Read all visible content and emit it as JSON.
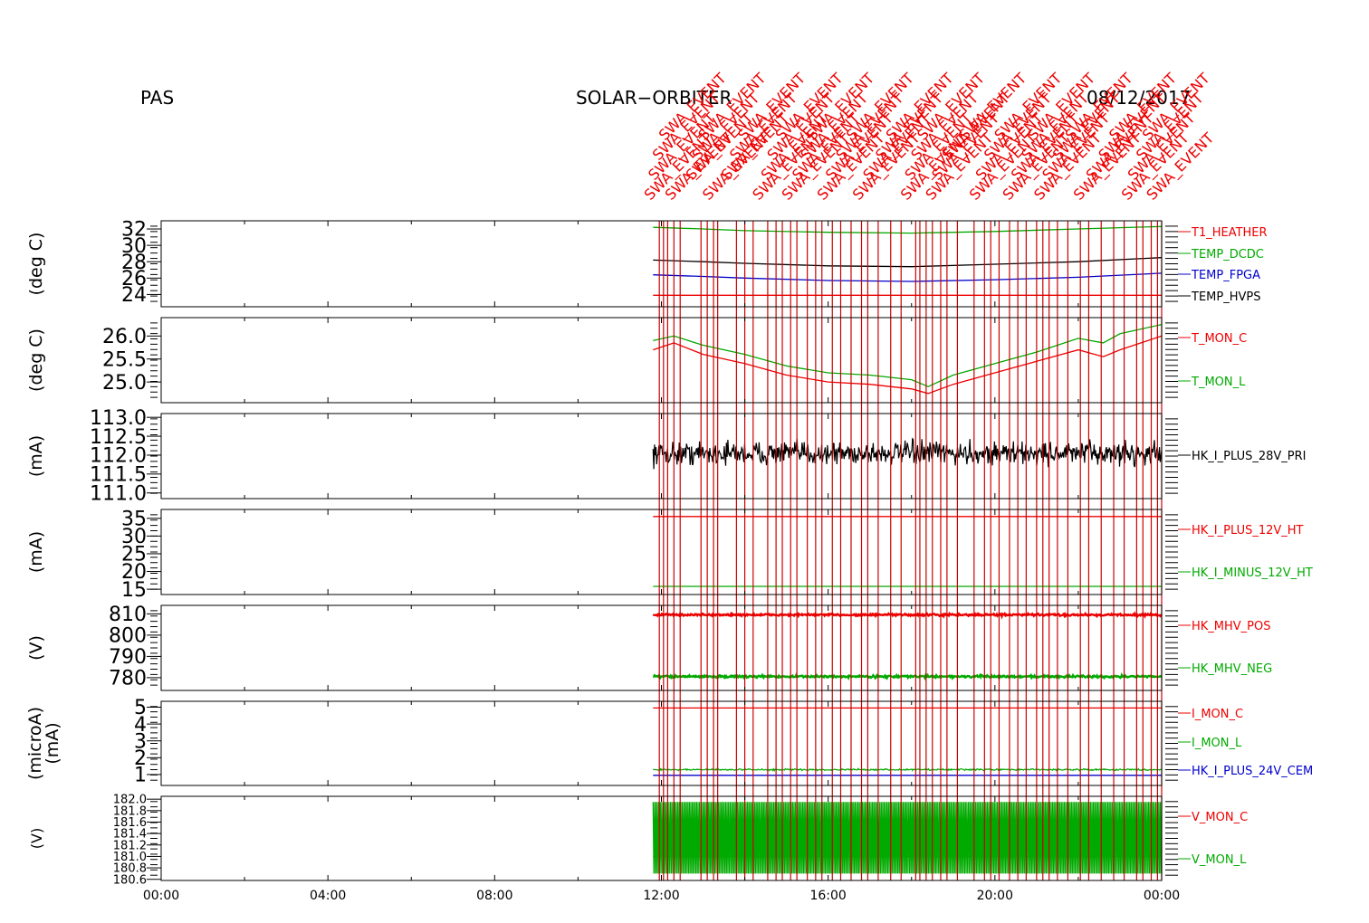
{
  "header": {
    "instrument": "PAS",
    "mission": "SOLAR−ORBITER",
    "date": "08/12/2017"
  },
  "colors": {
    "red": "#ee0000",
    "green": "#00aa00",
    "blue": "#0000cc",
    "black": "#000000",
    "event_line": "#cc0000"
  },
  "chart_data": {
    "type": "line",
    "x_axis": {
      "label": "",
      "range_hours": [
        0,
        24
      ],
      "tick_labels": [
        "00:00",
        "04:00",
        "08:00",
        "12:00",
        "16:00",
        "20:00",
        "00:00"
      ],
      "data_start_hour": 11.8,
      "data_end_hour": 24
    },
    "event_markers": {
      "label": "SWA_EVENT",
      "hours": [
        11.95,
        12.05,
        12.15,
        12.3,
        12.45,
        12.95,
        13.1,
        13.25,
        13.35,
        13.8,
        14.0,
        14.2,
        14.55,
        14.75,
        14.9,
        15.1,
        15.25,
        15.5,
        15.7,
        15.85,
        16.1,
        16.3,
        16.55,
        16.8,
        16.95,
        17.2,
        17.5,
        17.75,
        18.1,
        18.2,
        18.35,
        18.5,
        18.7,
        18.85,
        19.1,
        19.5,
        19.75,
        19.9,
        20.1,
        20.35,
        20.55,
        20.75,
        21.0,
        21.15,
        21.3,
        21.5,
        21.75,
        22.05,
        22.25,
        22.55,
        22.85,
        23.1,
        23.4,
        23.55,
        23.75,
        23.9,
        24.0
      ]
    },
    "panels": [
      {
        "ylabel": "(deg C)",
        "ylim": [
          22.5,
          33.0
        ],
        "yticks": [
          "24",
          "26",
          "28",
          "30",
          "32"
        ],
        "series": [
          {
            "name": "T1_HEATHER",
            "color": "red",
            "x": [
              11.8,
              14,
              16,
              18,
              20,
              22,
              24
            ],
            "y": [
              23.9,
              23.9,
              23.9,
              23.9,
              23.9,
              23.9,
              23.9
            ]
          },
          {
            "name": "TEMP_DCDC",
            "color": "green",
            "x": [
              11.8,
              13,
              14,
              16,
              18,
              20,
              22,
              24
            ],
            "y": [
              32.2,
              32.0,
              31.8,
              31.6,
              31.5,
              31.7,
              32.0,
              32.3
            ]
          },
          {
            "name": "TEMP_FPGA",
            "color": "blue",
            "x": [
              11.8,
              13,
              14,
              16,
              18,
              20,
              22,
              24
            ],
            "y": [
              26.4,
              26.2,
              26.0,
              25.7,
              25.6,
              25.8,
              26.1,
              26.6
            ]
          },
          {
            "name": "TEMP_HVPS",
            "color": "black",
            "x": [
              11.8,
              13,
              14,
              16,
              18,
              20,
              22,
              24
            ],
            "y": [
              28.2,
              28.0,
              27.8,
              27.5,
              27.4,
              27.7,
              28.0,
              28.5
            ]
          }
        ]
      },
      {
        "ylabel": "(deg C)",
        "ylim": [
          24.55,
          26.4
        ],
        "yticks": [
          "25.0",
          "25.5",
          "26.0"
        ],
        "series": [
          {
            "name": "T_MON_C",
            "color": "red",
            "x": [
              11.8,
              12.3,
              13,
              14,
              15,
              16,
              17,
              18,
              18.4,
              19,
              20,
              21,
              22,
              22.6,
              23,
              24
            ],
            "y": [
              25.7,
              25.85,
              25.6,
              25.4,
              25.15,
              25.0,
              24.95,
              24.85,
              24.75,
              24.95,
              25.2,
              25.45,
              25.7,
              25.55,
              25.7,
              26.0
            ]
          },
          {
            "name": "T_MON_L",
            "color": "green",
            "x": [
              11.8,
              12.3,
              13,
              14,
              15,
              16,
              17,
              18,
              18.4,
              19,
              20,
              21,
              22,
              22.6,
              23,
              24
            ],
            "y": [
              25.9,
              26.0,
              25.8,
              25.6,
              25.35,
              25.2,
              25.15,
              25.05,
              24.9,
              25.15,
              25.4,
              25.65,
              25.95,
              25.85,
              26.05,
              26.25
            ]
          }
        ]
      },
      {
        "ylabel": "(mA)",
        "ylim": [
          110.85,
          113.1
        ],
        "yticks": [
          "111.0",
          "111.5",
          "112.0",
          "112.5",
          "113.0"
        ],
        "series": [
          {
            "name": "HK_I_PLUS_28V_PRI",
            "color": "black",
            "x": [
              11.8,
              24
            ],
            "y": [
              112.0,
              112.0
            ],
            "noise_band": [
              111.6,
              112.5
            ]
          }
        ]
      },
      {
        "ylabel": "(mA)",
        "ylim": [
          13.5,
          37.5
        ],
        "yticks": [
          "15",
          "20",
          "25",
          "30",
          "35"
        ],
        "series": [
          {
            "name": "HK_I_PLUS_12V_HT",
            "color": "red",
            "x": [
              11.8,
              24
            ],
            "y": [
              35.5,
              35.5
            ]
          },
          {
            "name": "HK_I_MINUS_12V_HT",
            "color": "green",
            "x": [
              11.8,
              24
            ],
            "y": [
              15.8,
              15.8
            ]
          }
        ]
      },
      {
        "ylabel": "(V)",
        "ylim": [
          774.0,
          814.0
        ],
        "yticks": [
          "780",
          "790",
          "800",
          "810"
        ],
        "series": [
          {
            "name": "HK_MHV_POS",
            "color": "red",
            "x": [
              11.8,
              24
            ],
            "y": [
              809.5,
              809.5
            ],
            "noise_band": [
              808.8,
              810.3
            ]
          },
          {
            "name": "HK_MHV_NEG",
            "color": "green",
            "x": [
              11.8,
              24
            ],
            "y": [
              780.5,
              780.5
            ],
            "noise_band": [
              779.8,
              781.3
            ]
          }
        ]
      },
      {
        "ylabel": "(microA)",
        "ylabel2": "(mA)",
        "ylim": [
          0.35,
          5.35
        ],
        "yticks": [
          "1",
          "2",
          "3",
          "4",
          "5"
        ],
        "series": [
          {
            "name": "I_MON_C",
            "color": "red",
            "x": [
              11.8,
              24
            ],
            "y": [
              4.95,
              4.95
            ]
          },
          {
            "name": "I_MON_L",
            "color": "green",
            "x": [
              11.8,
              24
            ],
            "y": [
              1.28,
              1.28
            ],
            "noise_band": [
              1.22,
              1.36
            ]
          },
          {
            "name": "HK_I_PLUS_24V_CEM",
            "color": "blue",
            "x": [
              11.8,
              24
            ],
            "y": [
              0.95,
              0.95
            ]
          }
        ]
      },
      {
        "ylabel": "(V)",
        "ylim": [
          180.58,
          182.05
        ],
        "yticks": [
          "180.6",
          "180.8",
          "181.0",
          "181.2",
          "181.4",
          "181.6",
          "181.8",
          "182.0"
        ],
        "series": [
          {
            "name": "V_MON_C",
            "color": "red",
            "x": [
              11.8,
              24
            ],
            "y": [
              181.0,
              181.0
            ]
          },
          {
            "name": "V_MON_L",
            "color": "green",
            "x": [
              11.8,
              24
            ],
            "y": [
              181.3,
              181.3
            ],
            "noise_band": [
              180.7,
              181.95
            ]
          }
        ]
      }
    ]
  }
}
